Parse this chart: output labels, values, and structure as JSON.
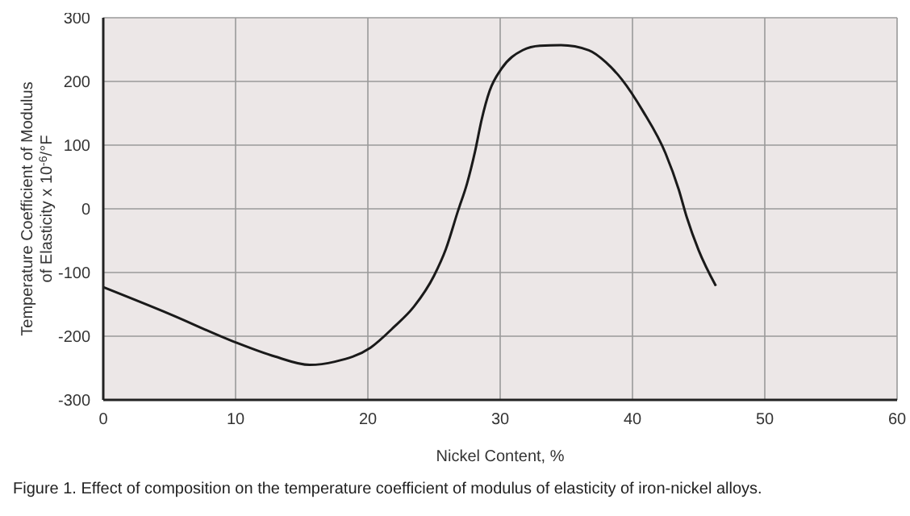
{
  "chart_data": {
    "type": "line",
    "xlabel": "Nickel Content, %",
    "ylabel": "Temperature Coefficient of Modulus of Elasticity x 10$^{-6}$/°F",
    "annotations": [
      "Figure 1. Effect of composition on the temperature coefficient of modulus of elasticity of iron-nickel alloys."
    ],
    "x": [
      0,
      5,
      9.8,
      13,
      15.6,
      17.5,
      20.2,
      22,
      23.5,
      25,
      25.9,
      26.8,
      27.5,
      28.1,
      28.6,
      29.2,
      30.1,
      31.7,
      33,
      34.6,
      36.7,
      38,
      39.2,
      40.8,
      42.5,
      43.5,
      44.1,
      45,
      46.3
    ],
    "series": [
      {
        "color": "#1a1a1a",
        "values": [
          -123,
          -165,
          -208,
          -232,
          -245,
          -240,
          -218,
          -185,
          -153,
          -105,
          -63,
          -4,
          40,
          90,
          140,
          185,
          220,
          249,
          256,
          257,
          249,
          230,
          203,
          153,
          87,
          30,
          -13,
          -65,
          -121
        ]
      }
    ],
    "xlim": [
      0,
      60
    ],
    "xticks": [
      0,
      10,
      20,
      30,
      40,
      50,
      60
    ],
    "ylim": [
      -300,
      300
    ],
    "yticks": [
      -300,
      -200,
      -100,
      0,
      100,
      200,
      300
    ],
    "grid": true,
    "marker": "none",
    "line_style": "solid"
  }
}
